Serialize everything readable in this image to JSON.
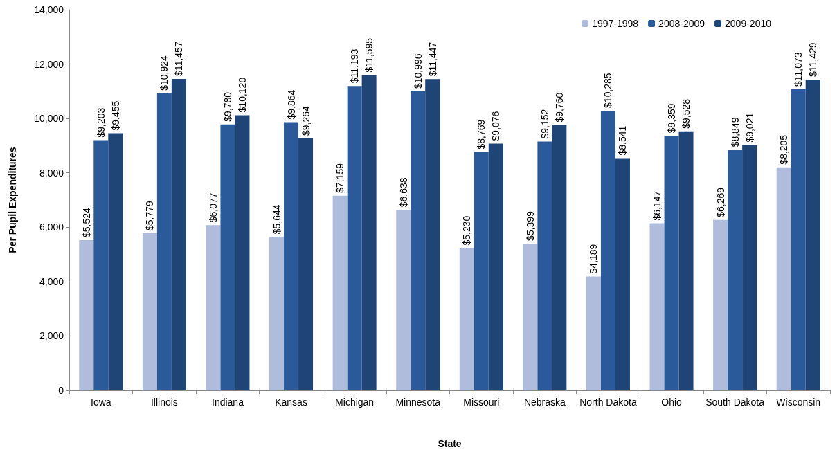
{
  "chart_data": {
    "type": "bar",
    "xlabel": "State",
    "ylabel": "Per Pupil Expenditures",
    "categories": [
      "Iowa",
      "Illinois",
      "Indiana",
      "Kansas",
      "Michigan",
      "Minnesota",
      "Missouri",
      "Nebraska",
      "North Dakota",
      "Ohio",
      "South Dakota",
      "Wisconsin"
    ],
    "series": [
      {
        "name": "1997-1998",
        "color": "#b0bcdc",
        "values": [
          5524,
          5779,
          6077,
          5644,
          7159,
          6638,
          5230,
          5399,
          4189,
          6147,
          6269,
          8205
        ],
        "value_labels": [
          "$5,524",
          "$5,779",
          "$6,077",
          "$5,644",
          "$7,159",
          "$6,638",
          "$5,230",
          "$5,399",
          "$4,189",
          "$6,147",
          "$6,269",
          "$8,205"
        ]
      },
      {
        "name": "2008-2009",
        "color": "#2a5a9a",
        "values": [
          9203,
          10924,
          9780,
          9864,
          11193,
          10996,
          8769,
          9152,
          10285,
          9359,
          8849,
          11073
        ],
        "value_labels": [
          "$9,203",
          "$10,924",
          "$9,780",
          "$9,864",
          "$11,193",
          "$10,996",
          "$8,769",
          "$9,152",
          "$10,285",
          "$9,359",
          "$8,849",
          "$11,073"
        ]
      },
      {
        "name": "2009-2010",
        "color": "#1f4576",
        "values": [
          9455,
          11457,
          10120,
          9264,
          11595,
          11447,
          9076,
          9760,
          8541,
          9528,
          9021,
          11429
        ],
        "value_labels": [
          "$9,455",
          "$11,457",
          "$10,120",
          "$9,264",
          "$11,595",
          "$11,447",
          "$9,076",
          "$9,760",
          "$8,541",
          "$9,528",
          "$9,021",
          "$11,429"
        ]
      }
    ],
    "ylim": [
      0,
      14000
    ],
    "yticks": [
      {
        "value": 0,
        "label": "0"
      },
      {
        "value": 2000,
        "label": "2,000"
      },
      {
        "value": 4000,
        "label": "4,000"
      },
      {
        "value": 6000,
        "label": "6,000"
      },
      {
        "value": 8000,
        "label": "8,000"
      },
      {
        "value": 10000,
        "label": "10,000"
      },
      {
        "value": 12000,
        "label": "12,000"
      },
      {
        "value": 14000,
        "label": "14,000"
      }
    ],
    "grid": false,
    "legend": "top right"
  }
}
